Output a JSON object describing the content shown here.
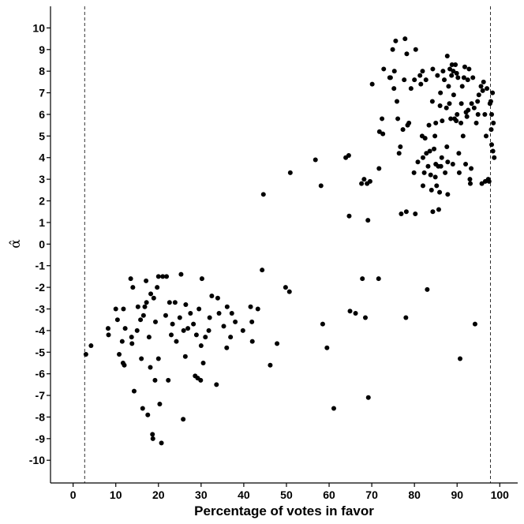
{
  "chart_data": {
    "type": "scatter",
    "xlabel": "Percentage of votes in favor",
    "ylabel": "α̂",
    "xlim": [
      -5.3,
      104.2
    ],
    "ylim": [
      -11.05,
      11.0
    ],
    "xticks": [
      0,
      10,
      20,
      30,
      40,
      50,
      60,
      70,
      80,
      90,
      100
    ],
    "yticks": [
      -10,
      -9,
      -8,
      -7,
      -6,
      -5,
      -4,
      -3,
      -2,
      -1,
      0,
      1,
      2,
      3,
      4,
      5,
      6,
      7,
      8,
      9,
      10
    ],
    "grid": false,
    "reference_lines": [
      2.7,
      97.8
    ],
    "points": [
      [
        3.0,
        -5.1
      ],
      [
        4.2,
        -4.7
      ],
      [
        8.2,
        -3.9
      ],
      [
        8.3,
        -4.2
      ],
      [
        10.0,
        -3.0
      ],
      [
        10.4,
        -3.5
      ],
      [
        10.8,
        -5.1
      ],
      [
        11.5,
        -4.5
      ],
      [
        11.7,
        -5.5
      ],
      [
        11.8,
        -3.0
      ],
      [
        12.0,
        -5.6
      ],
      [
        12.2,
        -3.9
      ],
      [
        13.5,
        -1.6
      ],
      [
        13.7,
        -4.3
      ],
      [
        13.8,
        -4.6
      ],
      [
        14.0,
        -2.0
      ],
      [
        14.3,
        -6.8
      ],
      [
        15.0,
        -4.0
      ],
      [
        15.2,
        -2.9
      ],
      [
        15.8,
        -3.5
      ],
      [
        16.0,
        -5.3
      ],
      [
        16.3,
        -7.6
      ],
      [
        16.5,
        -3.3
      ],
      [
        16.8,
        -2.9
      ],
      [
        17.2,
        -2.7
      ],
      [
        17.1,
        -1.7
      ],
      [
        17.5,
        -7.9
      ],
      [
        17.8,
        -4.3
      ],
      [
        18.1,
        -5.7
      ],
      [
        18.2,
        -2.3
      ],
      [
        18.6,
        -8.8
      ],
      [
        18.7,
        -9.0
      ],
      [
        18.9,
        -2.5
      ],
      [
        19.2,
        -6.3
      ],
      [
        19.3,
        -3.6
      ],
      [
        19.7,
        -2.0
      ],
      [
        20.0,
        -1.5
      ],
      [
        20.0,
        -5.3
      ],
      [
        20.3,
        -7.4
      ],
      [
        20.7,
        -9.2
      ],
      [
        21.0,
        -1.5
      ],
      [
        21.7,
        -3.3
      ],
      [
        21.9,
        -1.5
      ],
      [
        22.3,
        -6.3
      ],
      [
        22.6,
        -2.7
      ],
      [
        23.0,
        -4.2
      ],
      [
        23.3,
        -3.7
      ],
      [
        23.9,
        -2.7
      ],
      [
        24.2,
        -4.5
      ],
      [
        25.0,
        -3.4
      ],
      [
        25.3,
        -1.4
      ],
      [
        25.8,
        -8.1
      ],
      [
        25.9,
        -4.0
      ],
      [
        26.3,
        -5.2
      ],
      [
        26.4,
        -2.8
      ],
      [
        26.9,
        -3.9
      ],
      [
        27.5,
        -3.2
      ],
      [
        28.2,
        -3.7
      ],
      [
        28.6,
        -6.1
      ],
      [
        28.9,
        -4.2
      ],
      [
        29.2,
        -6.2
      ],
      [
        29.5,
        -3.0
      ],
      [
        29.9,
        -6.3
      ],
      [
        30.0,
        -4.7
      ],
      [
        30.2,
        -1.6
      ],
      [
        30.5,
        -5.5
      ],
      [
        31.0,
        -4.3
      ],
      [
        31.8,
        -4.0
      ],
      [
        32.0,
        -3.4
      ],
      [
        32.5,
        -2.4
      ],
      [
        33.6,
        -6.5
      ],
      [
        33.9,
        -2.5
      ],
      [
        34.2,
        -3.2
      ],
      [
        35.3,
        -3.8
      ],
      [
        36.0,
        -4.8
      ],
      [
        36.1,
        -2.9
      ],
      [
        36.9,
        -4.3
      ],
      [
        37.2,
        -3.2
      ],
      [
        38.0,
        -3.6
      ],
      [
        39.8,
        -4.0
      ],
      [
        41.6,
        -2.9
      ],
      [
        41.9,
        -3.6
      ],
      [
        42.0,
        -4.5
      ],
      [
        43.3,
        -3.0
      ],
      [
        44.3,
        -1.2
      ],
      [
        44.6,
        2.3
      ],
      [
        46.2,
        -5.6
      ],
      [
        47.8,
        -4.6
      ],
      [
        49.8,
        -2.0
      ],
      [
        50.7,
        -2.2
      ],
      [
        50.9,
        3.3
      ],
      [
        56.8,
        3.9
      ],
      [
        58.1,
        2.7
      ],
      [
        58.5,
        -3.7
      ],
      [
        59.5,
        -4.8
      ],
      [
        61.1,
        -7.6
      ],
      [
        63.9,
        4.0
      ],
      [
        64.6,
        4.1
      ],
      [
        64.7,
        1.3
      ],
      [
        64.9,
        -3.1
      ],
      [
        66.2,
        -3.2
      ],
      [
        67.6,
        2.8
      ],
      [
        67.8,
        -1.6
      ],
      [
        68.2,
        3.0
      ],
      [
        68.5,
        -3.4
      ],
      [
        68.9,
        2.8
      ],
      [
        69.1,
        1.1
      ],
      [
        69.2,
        -7.1
      ],
      [
        69.6,
        2.9
      ],
      [
        70.1,
        7.4
      ],
      [
        71.6,
        -1.6
      ],
      [
        71.7,
        3.5
      ],
      [
        71.8,
        5.2
      ],
      [
        72.4,
        5.8
      ],
      [
        72.6,
        5.1
      ],
      [
        72.8,
        8.1
      ],
      [
        74.2,
        7.7
      ],
      [
        74.4,
        7.7
      ],
      [
        74.9,
        9.0
      ],
      [
        75.2,
        7.2
      ],
      [
        75.3,
        8.0
      ],
      [
        75.6,
        9.4
      ],
      [
        75.9,
        6.6
      ],
      [
        76.1,
        5.8
      ],
      [
        76.4,
        4.2
      ],
      [
        76.7,
        4.5
      ],
      [
        76.9,
        1.4
      ],
      [
        77.3,
        5.3
      ],
      [
        77.6,
        7.6
      ],
      [
        77.8,
        9.5
      ],
      [
        78.0,
        -3.4
      ],
      [
        78.1,
        1.5
      ],
      [
        78.2,
        8.8
      ],
      [
        78.4,
        5.5
      ],
      [
        78.7,
        5.6
      ],
      [
        79.2,
        7.2
      ],
      [
        79.9,
        3.3
      ],
      [
        80.0,
        7.6
      ],
      [
        80.2,
        1.4
      ],
      [
        80.3,
        9.0
      ],
      [
        80.8,
        3.8
      ],
      [
        81.3,
        7.8
      ],
      [
        81.5,
        7.4
      ],
      [
        81.8,
        5.0
      ],
      [
        81.9,
        8.0
      ],
      [
        82.0,
        4.0
      ],
      [
        82.0,
        2.7
      ],
      [
        82.3,
        3.3
      ],
      [
        82.5,
        4.9
      ],
      [
        82.7,
        7.6
      ],
      [
        82.8,
        4.2
      ],
      [
        83.0,
        -2.1
      ],
      [
        83.2,
        3.6
      ],
      [
        83.4,
        5.5
      ],
      [
        83.6,
        4.3
      ],
      [
        83.8,
        3.2
      ],
      [
        84.0,
        2.5
      ],
      [
        84.2,
        6.6
      ],
      [
        84.3,
        8.1
      ],
      [
        84.3,
        1.5
      ],
      [
        84.6,
        4.4
      ],
      [
        84.8,
        5.0
      ],
      [
        84.9,
        3.1
      ],
      [
        85.0,
        3.7
      ],
      [
        85.0,
        5.6
      ],
      [
        85.2,
        2.7
      ],
      [
        85.4,
        7.8
      ],
      [
        85.6,
        3.6
      ],
      [
        85.7,
        1.6
      ],
      [
        85.9,
        2.4
      ],
      [
        86.0,
        6.4
      ],
      [
        86.1,
        7.0
      ],
      [
        86.2,
        3.6
      ],
      [
        86.4,
        4.0
      ],
      [
        86.5,
        5.7
      ],
      [
        86.7,
        8.0
      ],
      [
        87.0,
        7.6
      ],
      [
        87.2,
        3.3
      ],
      [
        87.5,
        6.3
      ],
      [
        87.6,
        4.5
      ],
      [
        87.7,
        8.7
      ],
      [
        87.8,
        3.8
      ],
      [
        87.8,
        2.3
      ],
      [
        88.0,
        7.3
      ],
      [
        88.2,
        6.5
      ],
      [
        88.3,
        8.1
      ],
      [
        88.5,
        5.8
      ],
      [
        88.7,
        7.8
      ],
      [
        88.8,
        8.3
      ],
      [
        89.0,
        3.7
      ],
      [
        89.1,
        8.0
      ],
      [
        89.2,
        6.9
      ],
      [
        89.4,
        5.8
      ],
      [
        89.6,
        8.3
      ],
      [
        89.8,
        5.7
      ],
      [
        89.9,
        7.9
      ],
      [
        90.0,
        6.0
      ],
      [
        90.2,
        7.7
      ],
      [
        90.4,
        4.2
      ],
      [
        90.5,
        3.3
      ],
      [
        90.7,
        -5.3
      ],
      [
        90.9,
        5.6
      ],
      [
        91.0,
        6.5
      ],
      [
        91.2,
        7.3
      ],
      [
        91.4,
        5.0
      ],
      [
        91.6,
        7.7
      ],
      [
        91.8,
        8.2
      ],
      [
        92.0,
        3.7
      ],
      [
        92.1,
        6.1
      ],
      [
        92.3,
        5.9
      ],
      [
        92.5,
        7.6
      ],
      [
        92.6,
        6.2
      ],
      [
        92.8,
        8.1
      ],
      [
        93.0,
        3.0
      ],
      [
        93.1,
        2.8
      ],
      [
        93.3,
        3.5
      ],
      [
        93.4,
        6.5
      ],
      [
        93.7,
        7.7
      ],
      [
        94.0,
        6.3
      ],
      [
        94.2,
        -3.7
      ],
      [
        94.5,
        5.6
      ],
      [
        94.8,
        6.6
      ],
      [
        94.9,
        6.0
      ],
      [
        95.1,
        6.9
      ],
      [
        95.6,
        7.3
      ],
      [
        95.8,
        2.8
      ],
      [
        96.0,
        7.1
      ],
      [
        96.2,
        7.5
      ],
      [
        96.5,
        6.0
      ],
      [
        96.6,
        2.9
      ],
      [
        96.8,
        5.0
      ],
      [
        97.0,
        7.2
      ],
      [
        97.3,
        3.0
      ],
      [
        97.5,
        2.9
      ],
      [
        97.7,
        6.5
      ],
      [
        97.9,
        6.6
      ],
      [
        98.0,
        5.3
      ],
      [
        98.1,
        4.6
      ],
      [
        98.3,
        7.0
      ],
      [
        98.4,
        4.3
      ],
      [
        98.5,
        5.6
      ],
      [
        98.7,
        4.0
      ],
      [
        98.1,
        6.0
      ]
    ]
  }
}
